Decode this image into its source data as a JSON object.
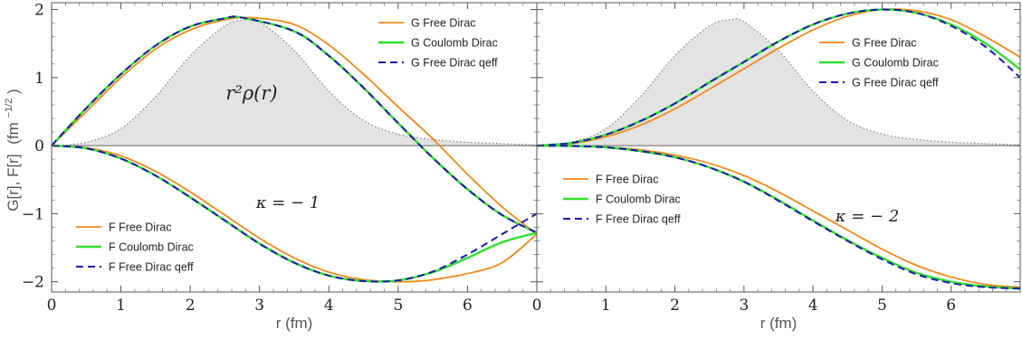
{
  "chart_data": {
    "type": "line",
    "ylabel": "G[r], F[r]  (fm⁻¹ᐟ²)",
    "ylabel_parts": {
      "main": "G[r], F[r]",
      "unit_open": "(fm",
      "exp": "−1/2",
      "unit_close": ")"
    },
    "ylim": [
      -2.15,
      2.1
    ],
    "yticks": [
      -2,
      -1,
      0,
      1,
      2
    ],
    "colors": {
      "free": "#f08a1c",
      "coulomb": "#2ee02e",
      "qeff": "#1a1aa8",
      "density_fill": "#e3e3e3",
      "density_line": "#888888"
    },
    "panels": [
      {
        "xlabel": "r (fm)",
        "xlim": [
          0,
          7
        ],
        "xticks": [
          0,
          1,
          2,
          3,
          4,
          5,
          6
        ],
        "annotation_kappa": "κ = − 1",
        "annotation_density": "r²ρ(r)",
        "legend_G": [
          "G Free Dirac",
          "G Coulomb Dirac",
          "G Free Dirac qeff"
        ],
        "legend_F": [
          "F Free Dirac",
          "F Coulomb Dirac",
          "F Free Dirac qeff"
        ],
        "density": {
          "x": [
            0,
            0.5,
            1,
            1.5,
            2,
            2.5,
            2.8,
            3,
            3.5,
            4,
            4.5,
            5,
            5.5,
            6,
            6.5,
            7
          ],
          "y": [
            0,
            0.05,
            0.25,
            0.72,
            1.32,
            1.76,
            1.85,
            1.82,
            1.4,
            0.8,
            0.37,
            0.17,
            0.09,
            0.05,
            0.03,
            0.01
          ]
        },
        "series": [
          {
            "name": "G Free Dirac",
            "style": "free",
            "x": [
              0,
              0.5,
              1,
              1.5,
              2,
              2.5,
              2.9,
              3.5,
              4,
              4.5,
              5,
              5.5,
              6,
              6.5,
              7
            ],
            "y": [
              0,
              0.5,
              1.0,
              1.42,
              1.7,
              1.85,
              1.88,
              1.78,
              1.48,
              1.05,
              0.57,
              0.1,
              -0.42,
              -0.9,
              -1.3
            ]
          },
          {
            "name": "G Coulomb Dirac",
            "style": "coulomb",
            "x": [
              0,
              0.5,
              1,
              1.5,
              2,
              2.5,
              2.75,
              3.5,
              4,
              4.5,
              5,
              5.5,
              6,
              6.5,
              7
            ],
            "y": [
              0,
              0.55,
              1.05,
              1.47,
              1.75,
              1.87,
              1.88,
              1.68,
              1.32,
              0.85,
              0.33,
              -0.18,
              -0.64,
              -1.02,
              -1.28
            ]
          },
          {
            "name": "G Free Dirac qeff",
            "style": "qeff",
            "x": [
              0,
              0.5,
              1,
              1.5,
              2,
              2.5,
              2.75,
              3.5,
              4,
              4.5,
              5,
              5.5,
              6,
              6.5,
              7
            ],
            "y": [
              0,
              0.55,
              1.05,
              1.47,
              1.75,
              1.87,
              1.88,
              1.68,
              1.32,
              0.85,
              0.33,
              -0.18,
              -0.64,
              -1.02,
              -1.28
            ]
          },
          {
            "name": "F Free Dirac",
            "style": "free",
            "x": [
              0,
              0.5,
              1,
              1.5,
              2,
              2.5,
              3,
              3.5,
              4,
              4.5,
              5,
              5.3,
              5.5,
              6,
              6.5,
              7
            ],
            "y": [
              0,
              -0.03,
              -0.15,
              -0.38,
              -0.68,
              -1.02,
              -1.36,
              -1.65,
              -1.86,
              -1.97,
              -2.0,
              -1.99,
              -1.97,
              -1.88,
              -1.72,
              -1.3
            ]
          },
          {
            "name": "F Coulomb Dirac",
            "style": "coulomb",
            "x": [
              0,
              0.5,
              1,
              1.5,
              2,
              2.5,
              3,
              3.5,
              4,
              4.5,
              5,
              5.5,
              6,
              6.5,
              7
            ],
            "y": [
              0,
              -0.04,
              -0.19,
              -0.44,
              -0.76,
              -1.1,
              -1.44,
              -1.72,
              -1.91,
              -1.99,
              -1.98,
              -1.86,
              -1.65,
              -1.42,
              -1.28
            ]
          },
          {
            "name": "F Free Dirac qeff",
            "style": "qeff",
            "x": [
              0,
              0.5,
              1,
              1.5,
              2,
              2.5,
              3,
              3.5,
              4,
              4.5,
              5,
              5.5,
              6,
              6.5,
              7
            ],
            "y": [
              0,
              -0.04,
              -0.19,
              -0.44,
              -0.76,
              -1.1,
              -1.44,
              -1.72,
              -1.91,
              -1.99,
              -1.98,
              -1.85,
              -1.6,
              -1.3,
              -1.0
            ]
          }
        ]
      },
      {
        "xlabel": "r (fm)",
        "xlim": [
          0,
          7
        ],
        "xticks": [
          0,
          1,
          2,
          3,
          4,
          5,
          6
        ],
        "annotation_kappa": "κ = − 2",
        "legend_G": [
          "G Free Dirac",
          "G Coulomb Dirac",
          "G Free Dirac qeff"
        ],
        "legend_F": [
          "F Free Dirac",
          "F Coulomb Dirac",
          "F Free Dirac qeff"
        ],
        "density": {
          "x": [
            0,
            0.5,
            1,
            1.5,
            2,
            2.5,
            2.8,
            3,
            3.5,
            4,
            4.5,
            5,
            5.5,
            6,
            6.5,
            7
          ],
          "y": [
            0,
            0.05,
            0.25,
            0.72,
            1.32,
            1.76,
            1.85,
            1.82,
            1.4,
            0.8,
            0.37,
            0.17,
            0.09,
            0.05,
            0.03,
            0.01
          ]
        },
        "series": [
          {
            "name": "G Free Dirac",
            "style": "free",
            "x": [
              0,
              0.5,
              1,
              1.5,
              2,
              2.5,
              3,
              3.5,
              4,
              4.5,
              5,
              5.5,
              6,
              6.5,
              7
            ],
            "y": [
              0,
              0.03,
              0.13,
              0.3,
              0.54,
              0.83,
              1.13,
              1.43,
              1.7,
              1.9,
              2.0,
              1.98,
              1.85,
              1.6,
              1.3
            ]
          },
          {
            "name": "G Coulomb Dirac",
            "style": "coulomb",
            "x": [
              0,
              0.5,
              1,
              1.5,
              2,
              2.5,
              3,
              3.5,
              4,
              4.5,
              5,
              5.5,
              6,
              6.5,
              7
            ],
            "y": [
              0,
              0.04,
              0.16,
              0.36,
              0.62,
              0.93,
              1.23,
              1.53,
              1.78,
              1.94,
              2.0,
              1.95,
              1.78,
              1.5,
              1.12
            ]
          },
          {
            "name": "G Free Dirac qeff",
            "style": "qeff",
            "x": [
              0,
              0.5,
              1,
              1.5,
              2,
              2.5,
              3,
              3.5,
              4,
              4.5,
              5,
              5.5,
              6,
              6.5,
              7
            ],
            "y": [
              0,
              0.04,
              0.16,
              0.36,
              0.62,
              0.93,
              1.23,
              1.53,
              1.78,
              1.94,
              2.0,
              1.95,
              1.76,
              1.45,
              1.0
            ]
          },
          {
            "name": "F Free Dirac",
            "style": "free",
            "x": [
              0,
              0.5,
              1,
              1.5,
              2,
              2.5,
              3,
              3.5,
              4,
              4.5,
              5,
              5.5,
              6,
              6.5,
              7
            ],
            "y": [
              0,
              -0.004,
              -0.02,
              -0.06,
              -0.14,
              -0.26,
              -0.44,
              -0.68,
              -0.96,
              -1.24,
              -1.52,
              -1.76,
              -1.93,
              -2.04,
              -2.08
            ]
          },
          {
            "name": "F Coulomb Dirac",
            "style": "coulomb",
            "x": [
              0,
              0.5,
              1,
              1.5,
              2,
              2.5,
              3,
              3.5,
              4,
              4.5,
              5,
              5.5,
              6,
              6.5,
              7
            ],
            "y": [
              0,
              -0.005,
              -0.025,
              -0.08,
              -0.17,
              -0.32,
              -0.53,
              -0.8,
              -1.1,
              -1.39,
              -1.65,
              -1.87,
              -2.0,
              -2.07,
              -2.1
            ]
          },
          {
            "name": "F Free Dirac qeff",
            "style": "qeff",
            "x": [
              0,
              0.5,
              1,
              1.5,
              2,
              2.5,
              3,
              3.5,
              4,
              4.5,
              5,
              5.5,
              6,
              6.5,
              7
            ],
            "y": [
              0,
              -0.005,
              -0.025,
              -0.08,
              -0.17,
              -0.32,
              -0.53,
              -0.81,
              -1.11,
              -1.4,
              -1.67,
              -1.89,
              -2.02,
              -2.08,
              -2.1
            ]
          }
        ]
      }
    ]
  }
}
